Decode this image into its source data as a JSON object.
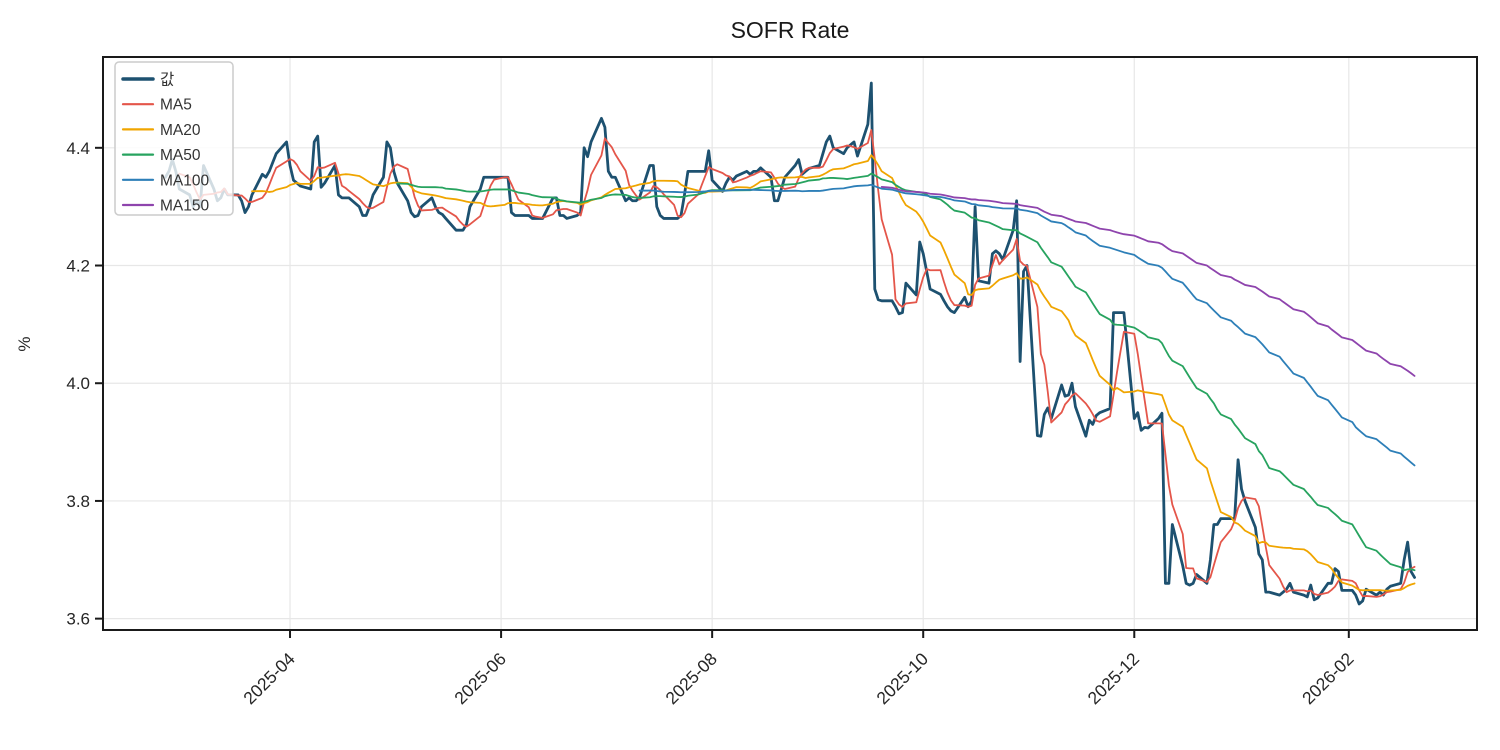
{
  "chart_data": {
    "type": "line",
    "title": "SOFR Rate",
    "ylabel": "%",
    "grid": true,
    "grid_color": "#e7e7e7",
    "axis_color": "#1a1a1a",
    "background_color": "#ffffff",
    "legend_position": "upper-left",
    "x_axis": {
      "start_date": "2025-02-24",
      "frequency": "business-daily",
      "tick_labels": [
        "2025-04",
        "2025-06",
        "2025-08",
        "2025-10",
        "2025-12",
        "2026-02"
      ]
    },
    "y_axis": {
      "ticks": [
        3.6,
        3.8,
        4.0,
        4.2,
        4.4
      ],
      "lim": [
        3.5807,
        4.5543
      ]
    },
    "series": [
      {
        "name": "값",
        "type": "raw",
        "color": "#1d5170",
        "width": 2.8
      },
      {
        "name": "MA5",
        "type": "moving-average",
        "window": 5,
        "color": "#e4564a",
        "width": 1.8
      },
      {
        "name": "MA20",
        "type": "moving-average",
        "window": 20,
        "color": "#f0a500",
        "width": 1.8
      },
      {
        "name": "MA50",
        "type": "moving-average",
        "window": 50,
        "color": "#27a35f",
        "width": 1.8
      },
      {
        "name": "MA100",
        "type": "moving-average",
        "window": 100,
        "color": "#2d7fb8",
        "width": 1.8
      },
      {
        "name": "MA150",
        "type": "moving-average",
        "window": 150,
        "color": "#8e44ad",
        "width": 1.8
      }
    ],
    "values": [
      4.35,
      4.36,
      4.38,
      4.36,
      4.33,
      4.32,
      4.3,
      4.31,
      4.3,
      4.37,
      4.33,
      4.31,
      4.315,
      4.33,
      4.32,
      4.32,
      4.31,
      4.29,
      4.3,
      4.32,
      4.355,
      4.35,
      4.36,
      4.375,
      4.39,
      4.41,
      4.37,
      4.345,
      4.34,
      4.335,
      4.33,
      4.41,
      4.42,
      4.333,
      4.34,
      4.37,
      4.32,
      4.315,
      4.315,
      4.315,
      4.3,
      4.285,
      4.285,
      4.3,
      4.32,
      4.35,
      4.41,
      4.4,
      4.36,
      4.34,
      4.31,
      4.29,
      4.283,
      4.285,
      4.3,
      4.315,
      4.3,
      4.29,
      4.287,
      4.28,
      4.26,
      4.26,
      4.26,
      4.27,
      4.3,
      4.33,
      4.35,
      4.35,
      4.35,
      4.35,
      4.35,
      4.35,
      4.29,
      4.285,
      4.285,
      4.285,
      4.28,
      4.28,
      4.28,
      4.28,
      4.315,
      4.315,
      4.285,
      4.285,
      4.28,
      4.285,
      4.29,
      4.4,
      4.385,
      4.41,
      4.45,
      4.435,
      4.36,
      4.35,
      4.35,
      4.31,
      4.315,
      4.31,
      4.31,
      4.315,
      4.37,
      4.37,
      4.3,
      4.285,
      4.28,
      4.28,
      4.28,
      4.285,
      4.32,
      4.36,
      4.36,
      4.36,
      4.36,
      4.395,
      4.345,
      4.326,
      4.34,
      4.35,
      4.345,
      4.352,
      4.36,
      4.355,
      4.36,
      4.36,
      4.366,
      4.35,
      4.31,
      4.31,
      4.33,
      4.35,
      4.37,
      4.38,
      4.355,
      4.36,
      4.365,
      4.37,
      4.39,
      4.41,
      4.42,
      4.4,
      4.39,
      4.4,
      4.405,
      4.41,
      4.386,
      4.44,
      4.51,
      4.16,
      4.142,
      4.14,
      4.14,
      4.13,
      4.118,
      4.12,
      4.17,
      4.15,
      4.24,
      4.22,
      4.19,
      4.16,
      4.151,
      4.14,
      4.13,
      4.123,
      4.12,
      4.146,
      4.13,
      4.14,
      4.3,
      4.174,
      4.17,
      4.22,
      4.225,
      4.22,
      4.21,
      4.26,
      4.31,
      4.037,
      4.19,
      4.2,
      3.911,
      3.91,
      3.947,
      3.958,
      3.94,
      3.997,
      3.978,
      3.98,
      4.0,
      3.96,
      3.91,
      3.937,
      3.93,
      3.945,
      3.95,
      3.957,
      4.12,
      4.12,
      4.12,
      4.12,
      3.94,
      3.95,
      3.92,
      3.925,
      3.924,
      3.94,
      3.949,
      3.66,
      3.66,
      3.76,
      3.69,
      3.66,
      3.657,
      3.66,
      3.675,
      3.66,
      3.7,
      3.76,
      3.76,
      3.77,
      3.77,
      3.77,
      3.87,
      3.82,
      3.8,
      3.755,
      3.71,
      3.7,
      3.645,
      3.645,
      3.64,
      3.645,
      3.65,
      3.66,
      3.645,
      3.64,
      3.637,
      3.657,
      3.632,
      3.635,
      3.66,
      3.66,
      3.685,
      3.68,
      3.648,
      3.648,
      3.64,
      3.625,
      3.63,
      3.65,
      3.64,
      3.645,
      3.64,
      3.65,
      3.655,
      3.66,
      3.7,
      3.73,
      3.68,
      3.67
    ]
  }
}
